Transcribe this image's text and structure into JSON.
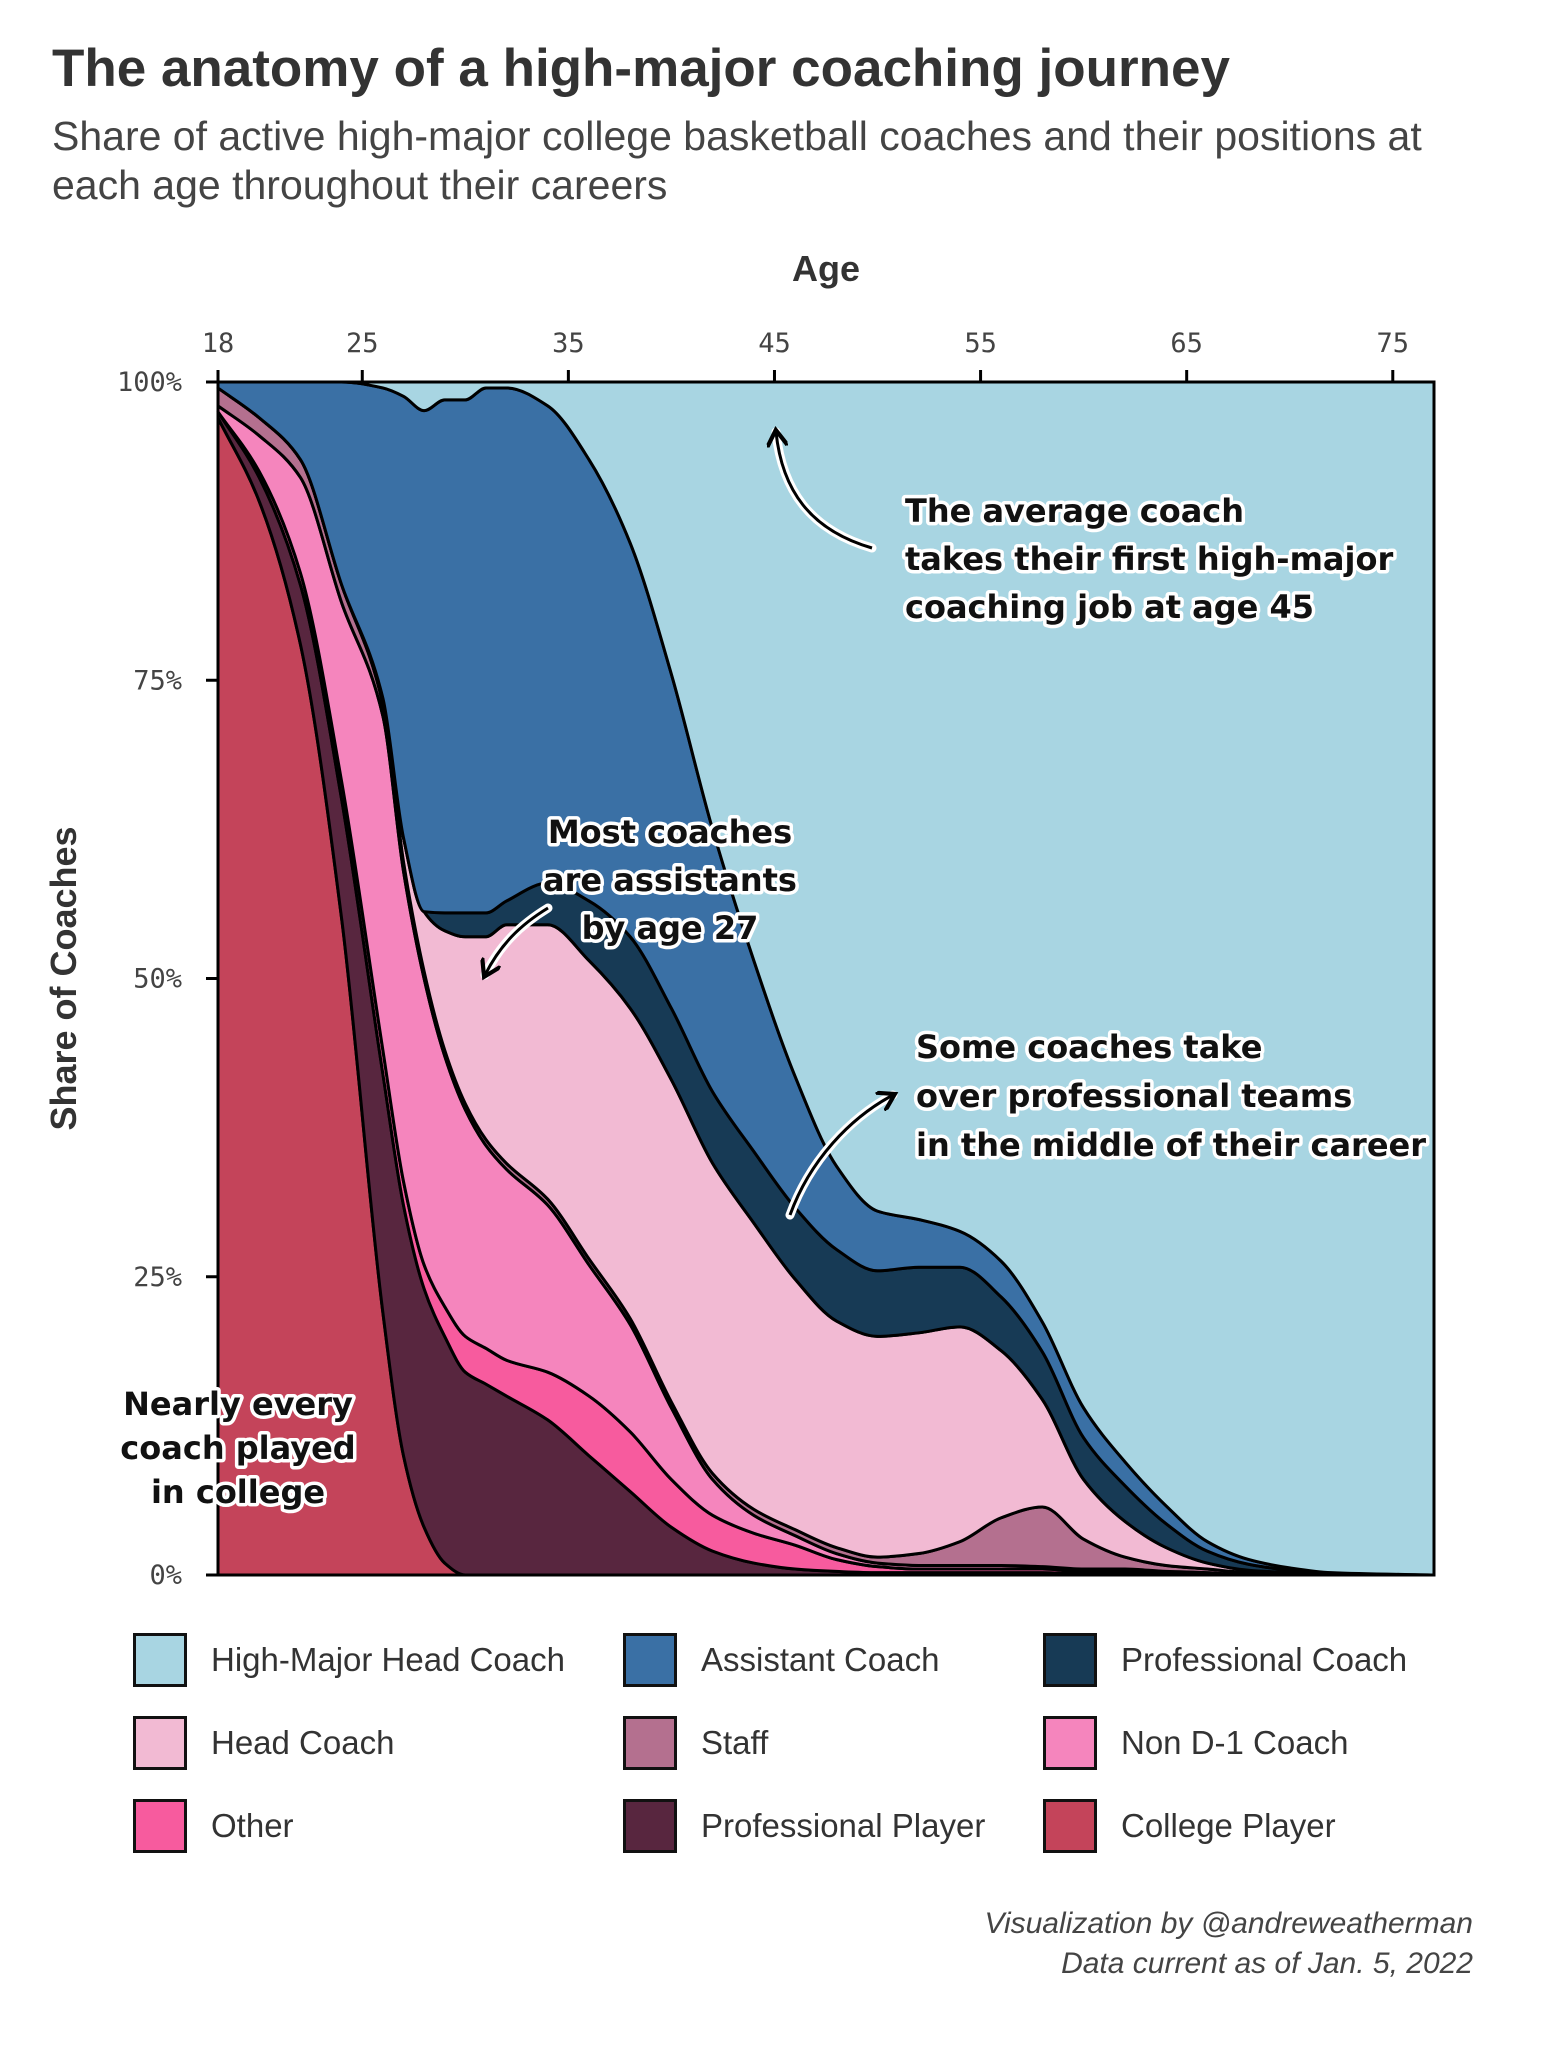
{
  "chart_data": {
    "type": "area",
    "stacked": "percent",
    "title": "The anatomy of a high-major coaching journey",
    "subtitle": "Share of active high-major college basketball coaches and their positions at each age throughout their careers",
    "xlabel": "Age",
    "ylabel": "Share of Coaches",
    "x_axis_position": "top",
    "xlim": [
      18,
      77
    ],
    "ylim": [
      0,
      100
    ],
    "xticks": [
      18,
      25,
      35,
      45,
      55,
      65,
      75
    ],
    "yticks": [
      {
        "value": 0,
        "label": "0%"
      },
      {
        "value": 25,
        "label": "25%"
      },
      {
        "value": 50,
        "label": "50%"
      },
      {
        "value": 75,
        "label": "75%"
      },
      {
        "value": 100,
        "label": "100%"
      }
    ],
    "grid": false,
    "legend_position": "bottom",
    "x": [
      18,
      20,
      22,
      24,
      26,
      27,
      28,
      29,
      30,
      31,
      32,
      34,
      36,
      38,
      40,
      42,
      44,
      46,
      48,
      50,
      52,
      54,
      56,
      58,
      60,
      62,
      64,
      66,
      68,
      70,
      72,
      77
    ],
    "series": [
      {
        "name": "College Player",
        "color": "#c4445a",
        "values": [
          97,
          90,
          78,
          55,
          22,
          10,
          4,
          1,
          0,
          0,
          0,
          0,
          0,
          0,
          0,
          0,
          0,
          0,
          0,
          0,
          0,
          0,
          0,
          0,
          0,
          0,
          0,
          0,
          0,
          0,
          0,
          0
        ]
      },
      {
        "name": "Professional Player",
        "color": "#58263f",
        "values": [
          0.5,
          2,
          5,
          10,
          20,
          21,
          20,
          19,
          17,
          16,
          15,
          13,
          10,
          7,
          4,
          2,
          1,
          0.5,
          0.3,
          0.2,
          0.2,
          0.2,
          0.2,
          0.2,
          0.1,
          0.1,
          0.1,
          0,
          0,
          0,
          0,
          0
        ]
      },
      {
        "name": "Other",
        "color": "#f75b9e",
        "values": [
          0,
          0.5,
          1,
          1.5,
          2,
          2,
          2,
          2.5,
          3,
          3,
          3,
          4,
          5,
          5,
          4,
          3,
          2.5,
          2,
          1,
          0.5,
          0.3,
          0.3,
          0.3,
          0.3,
          0.2,
          0.2,
          0.1,
          0.1,
          0,
          0,
          0,
          0
        ]
      },
      {
        "name": "Non D-1 Coach",
        "color": "#f585bd",
        "values": [
          0.5,
          3,
          8,
          15,
          28,
          26,
          24,
          21,
          19,
          17,
          16,
          14,
          11,
          9,
          6,
          3,
          1.5,
          0.8,
          0.5,
          0.3,
          0.3,
          0.3,
          0.3,
          0.2,
          0.2,
          0.2,
          0.1,
          0.1,
          0,
          0,
          0,
          0
        ]
      },
      {
        "name": "Staff",
        "color": "#b4708f",
        "values": [
          1.5,
          1.5,
          1.5,
          1.5,
          1,
          0.8,
          0.6,
          0.5,
          0.5,
          0.5,
          0.5,
          0.5,
          0.5,
          0.5,
          0.5,
          0.5,
          0.5,
          0.5,
          0.5,
          0.5,
          1,
          2,
          4,
          5,
          2.5,
          1,
          0.5,
          0.3,
          0.2,
          0.1,
          0,
          0
        ]
      },
      {
        "name": "Head Coach",
        "color": "#f2bad3",
        "values": [
          0,
          0,
          0,
          0,
          0.5,
          2,
          5,
          10,
          14,
          17,
          20,
          23,
          25,
          26,
          27,
          26,
          24,
          21,
          19,
          18.5,
          18.5,
          18,
          14,
          9,
          5,
          3,
          1.5,
          0.5,
          0.2,
          0.1,
          0,
          0
        ]
      },
      {
        "name": "Professional Coach",
        "color": "#173a55",
        "values": [
          0,
          0,
          0,
          0,
          0,
          0,
          0,
          1.5,
          2,
          2,
          2,
          3.5,
          5,
          6,
          6,
          6,
          6,
          6,
          6,
          5.5,
          5.5,
          5,
          4.5,
          4,
          3.5,
          3,
          2,
          1,
          0.5,
          0.2,
          0.1,
          0
        ]
      },
      {
        "name": "Assistant Coach",
        "color": "#3a70a5",
        "values": [
          0.5,
          3,
          6.5,
          17,
          26,
          37,
          42,
          43,
          43,
          44,
          43,
          40,
          37,
          33,
          28,
          22,
          16,
          11,
          7,
          5,
          4,
          3,
          3,
          2.5,
          2.5,
          2,
          1.5,
          0.8,
          0.4,
          0.2,
          0.1,
          0
        ]
      },
      {
        "name": "High-Major Head Coach",
        "color": "#a8d5e2",
        "values": [
          0,
          0,
          0,
          0.5,
          0.5,
          1.2,
          2.4,
          2,
          1.5,
          0.5,
          0.5,
          2,
          6.5,
          13.5,
          24.5,
          37.5,
          48.5,
          59.2,
          65.7,
          69.5,
          70.2,
          71.2,
          72.7,
          78.8,
          86,
          90.5,
          94.2,
          97.2,
          98.7,
          99.4,
          99.9,
          100
        ]
      }
    ],
    "annotations": [
      {
        "text": [
          "The average coach",
          "takes their first high-major",
          "coaching job at age 45"
        ],
        "arrow_to": {
          "x": 45,
          "y": 96
        }
      },
      {
        "text": [
          "Most coaches",
          "are assistants",
          "by age 27"
        ],
        "arrow_to": {
          "x": 30,
          "y": 50
        }
      },
      {
        "text": [
          "Some coaches take",
          "over professional teams",
          "in the middle of their career"
        ],
        "arrow_to": {
          "x": 50,
          "y": 40
        }
      },
      {
        "text": [
          "Nearly every",
          "coach played",
          "in college"
        ]
      }
    ]
  },
  "credit": {
    "line1": "Visualization by @andreweatherman",
    "line2": "Data current as of Jan. 5, 2022"
  }
}
